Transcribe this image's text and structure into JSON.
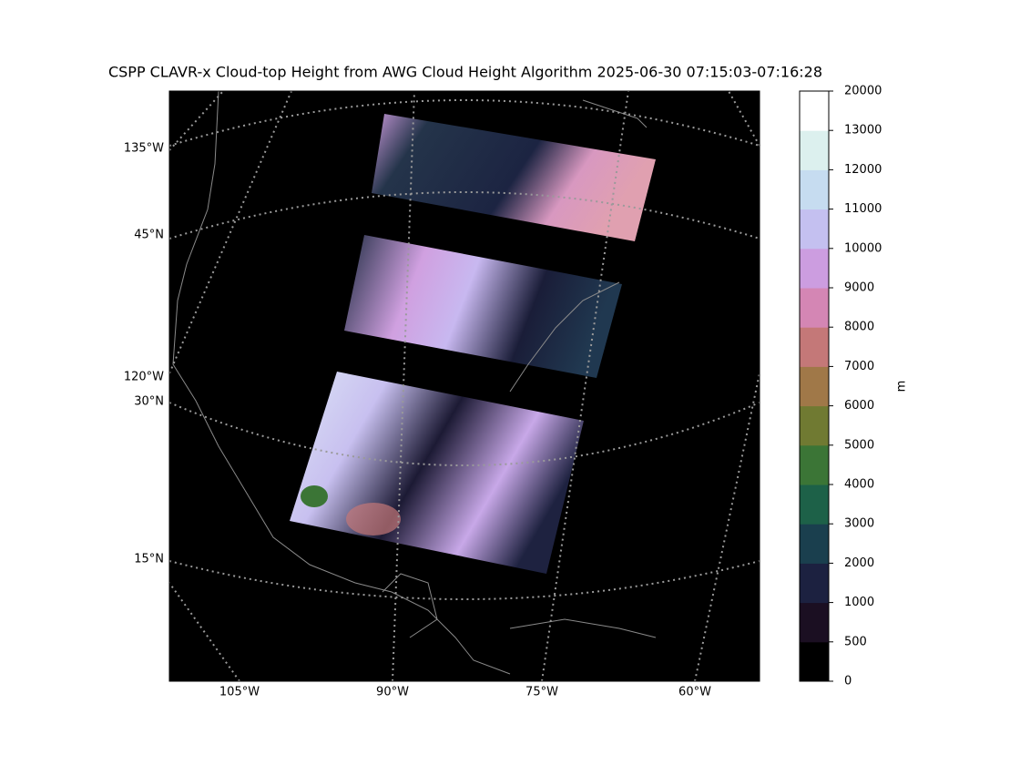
{
  "map": {
    "title": "CSPP CLAVR-x Cloud-top Height from AWG Cloud Height Algorithm 2025-06-30 07:15:03-07:16:28",
    "lon_labels": [
      "105°W",
      "90°W",
      "75°W",
      "60°W"
    ],
    "lat_labels": [
      "135°W",
      "45°N",
      "120°W",
      "30°N",
      "15°N"
    ],
    "colorbar": {
      "label": "m",
      "ticks": [
        0,
        500,
        1000,
        2000,
        3000,
        4000,
        5000,
        6000,
        7000,
        8000,
        9000,
        10000,
        11000,
        12000,
        13000,
        20000
      ],
      "colors": [
        "#000000",
        "#1b0f22",
        "#1c2140",
        "#1a3f4e",
        "#1d6148",
        "#3b7536",
        "#707a32",
        "#a07848",
        "#c47878",
        "#d486b4",
        "#cc9de0",
        "#c4c0f0",
        "#c6dcf0",
        "#dcf0ee",
        "#ffffff"
      ]
    }
  }
}
